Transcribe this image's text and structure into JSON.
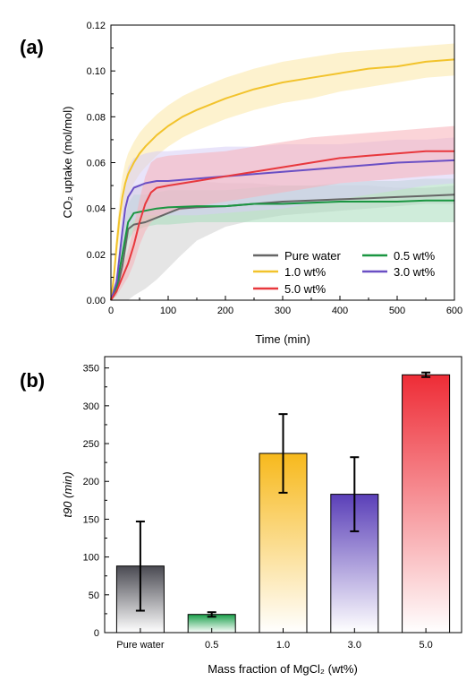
{
  "figure": {
    "panel_a_label": "(a)",
    "panel_b_label": "(b)"
  },
  "chart_data": [
    {
      "type": "line",
      "panel": "(a)",
      "title": "",
      "xlabel": "Time (min)",
      "ylabel": "CO₂ uptake (mol/mol)",
      "xlim": [
        0,
        600
      ],
      "ylim": [
        0,
        0.12
      ],
      "xticks": [
        "0",
        "100",
        "200",
        "300",
        "400",
        "500",
        "600"
      ],
      "yticks": [
        "0.00",
        "0.02",
        "0.04",
        "0.06",
        "0.08",
        "0.10",
        "0.12"
      ],
      "grid": false,
      "legend_position": "lower-right",
      "colors": {
        "Pure water": "#666666",
        "0.5 wt%": "#1a9641",
        "1.0 wt%": "#f2c32c",
        "3.0 wt%": "#6a4fc4",
        "5.0 wt%": "#e8383d"
      },
      "band_colors": {
        "Pure water": "#cfcfcf",
        "0.5 wt%": "#a8dcbc",
        "1.0 wt%": "#fbe7a6",
        "3.0 wt%": "#d7cdf5",
        "5.0 wt%": "#f7b1b8"
      },
      "series": [
        {
          "name": "Pure water",
          "x": [
            0,
            10,
            20,
            30,
            40,
            60,
            80,
            100,
            120,
            150,
            200,
            250,
            300,
            350,
            400,
            450,
            500,
            550,
            600
          ],
          "y": [
            0,
            0.004,
            0.015,
            0.031,
            0.033,
            0.034,
            0.036,
            0.038,
            0.04,
            0.0405,
            0.041,
            0.042,
            0.043,
            0.0435,
            0.044,
            0.0445,
            0.045,
            0.0455,
            0.046
          ],
          "lower": [
            0,
            0,
            0,
            0,
            0.002,
            0.005,
            0.009,
            0.014,
            0.019,
            0.026,
            0.032,
            0.035,
            0.037,
            0.038,
            0.039,
            0.04,
            0.041,
            0.042,
            0.042
          ],
          "upper": [
            0,
            0.01,
            0.03,
            0.046,
            0.05,
            0.051,
            0.052,
            0.052,
            0.052,
            0.052,
            0.051,
            0.051,
            0.05,
            0.05,
            0.05,
            0.05,
            0.049,
            0.049,
            0.05
          ]
        },
        {
          "name": "0.5 wt%",
          "x": [
            0,
            10,
            20,
            30,
            40,
            60,
            80,
            100,
            150,
            200,
            250,
            300,
            350,
            400,
            450,
            500,
            550,
            600
          ],
          "y": [
            0,
            0.006,
            0.02,
            0.034,
            0.038,
            0.039,
            0.04,
            0.0405,
            0.041,
            0.041,
            0.042,
            0.042,
            0.0425,
            0.043,
            0.043,
            0.043,
            0.0435,
            0.0435
          ],
          "lower": [
            0,
            0.002,
            0.012,
            0.026,
            0.03,
            0.032,
            0.033,
            0.033,
            0.034,
            0.034,
            0.034,
            0.034,
            0.034,
            0.034,
            0.034,
            0.034,
            0.034,
            0.034
          ],
          "upper": [
            0,
            0.01,
            0.028,
            0.042,
            0.046,
            0.046,
            0.047,
            0.048,
            0.048,
            0.048,
            0.049,
            0.05,
            0.05,
            0.051,
            0.052,
            0.052,
            0.053,
            0.053
          ]
        },
        {
          "name": "1.0 wt%",
          "x": [
            0,
            5,
            10,
            15,
            20,
            25,
            30,
            40,
            50,
            60,
            80,
            100,
            125,
            150,
            200,
            250,
            300,
            350,
            400,
            450,
            500,
            550,
            600
          ],
          "y": [
            0,
            0.01,
            0.024,
            0.036,
            0.045,
            0.051,
            0.055,
            0.06,
            0.064,
            0.067,
            0.072,
            0.076,
            0.08,
            0.083,
            0.088,
            0.092,
            0.095,
            0.097,
            0.099,
            0.101,
            0.102,
            0.104,
            0.105
          ],
          "lower": [
            0,
            0.006,
            0.018,
            0.028,
            0.036,
            0.042,
            0.046,
            0.051,
            0.055,
            0.058,
            0.063,
            0.067,
            0.071,
            0.074,
            0.079,
            0.083,
            0.086,
            0.088,
            0.091,
            0.093,
            0.095,
            0.097,
            0.098
          ],
          "upper": [
            0,
            0.014,
            0.03,
            0.044,
            0.054,
            0.06,
            0.064,
            0.069,
            0.073,
            0.076,
            0.081,
            0.085,
            0.089,
            0.092,
            0.097,
            0.101,
            0.104,
            0.106,
            0.108,
            0.109,
            0.11,
            0.111,
            0.112
          ]
        },
        {
          "name": "3.0 wt%",
          "x": [
            0,
            10,
            20,
            25,
            30,
            40,
            50,
            60,
            80,
            100,
            150,
            200,
            250,
            300,
            350,
            400,
            450,
            500,
            550,
            600
          ],
          "y": [
            0,
            0.008,
            0.03,
            0.04,
            0.045,
            0.049,
            0.05,
            0.051,
            0.052,
            0.052,
            0.053,
            0.054,
            0.055,
            0.056,
            0.057,
            0.058,
            0.059,
            0.06,
            0.0605,
            0.061
          ],
          "lower": [
            0,
            0.004,
            0.02,
            0.028,
            0.032,
            0.035,
            0.036,
            0.037,
            0.037,
            0.037,
            0.037,
            0.038,
            0.039,
            0.04,
            0.042,
            0.044,
            0.046,
            0.048,
            0.05,
            0.051
          ],
          "upper": [
            0,
            0.012,
            0.04,
            0.052,
            0.058,
            0.062,
            0.063,
            0.064,
            0.065,
            0.065,
            0.066,
            0.067,
            0.067,
            0.068,
            0.068,
            0.068,
            0.069,
            0.07,
            0.07,
            0.071
          ]
        },
        {
          "name": "5.0 wt%",
          "x": [
            0,
            10,
            20,
            30,
            40,
            50,
            60,
            70,
            80,
            100,
            150,
            200,
            250,
            300,
            350,
            400,
            450,
            500,
            550,
            600
          ],
          "y": [
            0,
            0.004,
            0.01,
            0.016,
            0.024,
            0.034,
            0.042,
            0.047,
            0.049,
            0.05,
            0.052,
            0.054,
            0.056,
            0.058,
            0.06,
            0.062,
            0.063,
            0.064,
            0.065,
            0.065
          ],
          "lower": [
            0,
            0.002,
            0.006,
            0.01,
            0.016,
            0.024,
            0.03,
            0.034,
            0.036,
            0.038,
            0.041,
            0.043,
            0.045,
            0.047,
            0.049,
            0.051,
            0.052,
            0.053,
            0.054,
            0.055
          ],
          "upper": [
            0,
            0.006,
            0.014,
            0.022,
            0.032,
            0.044,
            0.054,
            0.06,
            0.062,
            0.063,
            0.064,
            0.065,
            0.067,
            0.069,
            0.071,
            0.072,
            0.073,
            0.074,
            0.075,
            0.076
          ]
        }
      ]
    },
    {
      "type": "bar",
      "panel": "(b)",
      "title": "",
      "xlabel": "Mass fraction of MgCl₂ (wt%)",
      "ylabel": "t90 (min)",
      "ylim": [
        0,
        365
      ],
      "yticks": [
        "0",
        "50",
        "100",
        "150",
        "200",
        "250",
        "300",
        "350"
      ],
      "grid": false,
      "categories": [
        "Pure water",
        "0.5",
        "1.0",
        "3.0",
        "5.0"
      ],
      "values": [
        88,
        24,
        237,
        183,
        341
      ],
      "errors": [
        59,
        3,
        52,
        49,
        3
      ],
      "colors": [
        "#4a4a52",
        "#1aa04a",
        "#f7b91c",
        "#5a3fb8",
        "#ee2c36"
      ]
    }
  ]
}
